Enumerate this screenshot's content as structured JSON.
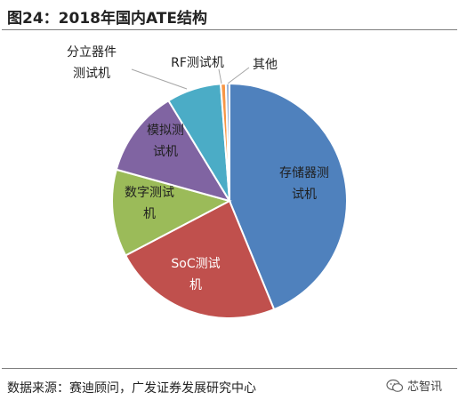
{
  "figure": {
    "title": "图24：2018年国内ATE结构",
    "source": "数据来源：赛迪顾问，广发证券发展研究中心",
    "watermark": "芯智讯",
    "watermark_icon": "wechat-icon"
  },
  "chart_data": {
    "type": "pie",
    "title": "",
    "slices": [
      {
        "label_lines": [
          "存储器测",
          "试机"
        ],
        "value": 43.8,
        "color": "#4f81bd",
        "label_color": "#1f1f1f"
      },
      {
        "label_lines": [
          "SoC测试",
          "机"
        ],
        "value": 23.5,
        "color": "#c0504d",
        "label_color": "#ffffff"
      },
      {
        "label_lines": [
          "数字测试",
          "机"
        ],
        "value": 12.0,
        "color": "#9bbb59",
        "label_color": "#1f1f1f"
      },
      {
        "label_lines": [
          "模拟测",
          "试机"
        ],
        "value": 12.0,
        "color": "#8064a2",
        "label_color": "#1f1f1f"
      },
      {
        "label_lines": [
          "分立器件",
          "测试机"
        ],
        "value": 7.5,
        "color": "#4bacc6",
        "label_color": "#1f1f1f"
      },
      {
        "label_lines": [
          "RF测试机"
        ],
        "value": 0.7,
        "color": "#f79646",
        "label_color": "#1f1f1f"
      },
      {
        "label_lines": [
          "其他"
        ],
        "value": 0.5,
        "color": "#9cb5d9",
        "label_color": "#1f1f1f"
      }
    ],
    "start": "12 o'clock",
    "direction": "clockwise",
    "legend": "none"
  }
}
